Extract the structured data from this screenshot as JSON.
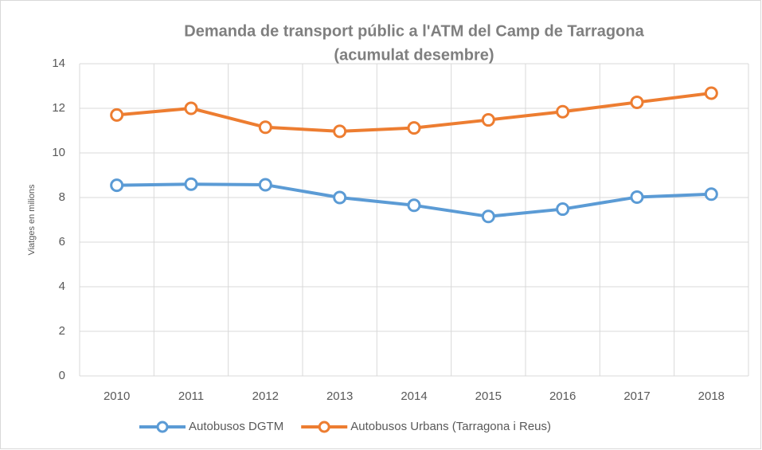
{
  "chart_data": {
    "type": "line",
    "title": [
      "Demanda de transport públic a l'ATM del Camp de Tarragona",
      "(acumulat desembre)"
    ],
    "y_label": "Viatges en milions",
    "categories": [
      "2010",
      "2011",
      "2012",
      "2013",
      "2014",
      "2015",
      "2016",
      "2017",
      "2018"
    ],
    "series": [
      {
        "name": "Autobusos DGTM",
        "color": "#5b9bd5",
        "values": [
          8.55,
          8.6,
          8.57,
          8.0,
          7.65,
          7.15,
          7.48,
          8.02,
          8.15
        ]
      },
      {
        "name": "Autobusos Urbans (Tarragona i Reus)",
        "color": "#ed7d31",
        "values": [
          11.7,
          12.0,
          11.15,
          10.97,
          11.12,
          11.48,
          11.85,
          12.27,
          12.68
        ]
      }
    ],
    "ylim": [
      0,
      14
    ],
    "yticks": [
      0,
      2,
      4,
      6,
      8,
      10,
      12,
      14
    ],
    "grid": true,
    "legend": "bottom"
  }
}
